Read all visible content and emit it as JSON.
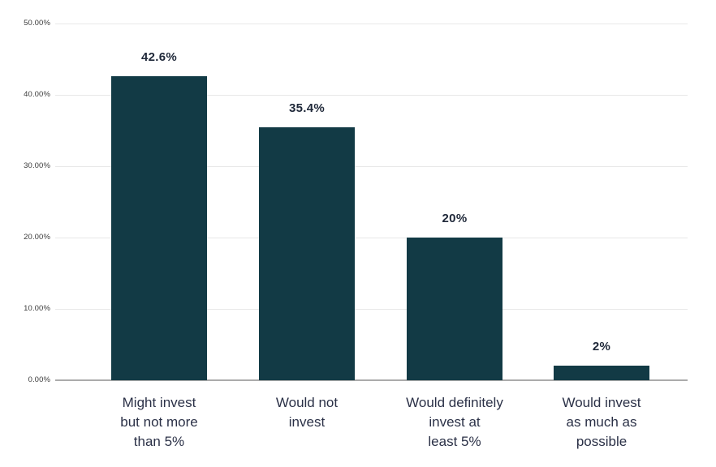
{
  "chart_data": {
    "type": "bar",
    "title": "",
    "xlabel": "",
    "ylabel": "",
    "categories": [
      "Might invest\nbut not more\nthan 5%",
      "Would not\ninvest",
      "Would definitely\ninvest at\nleast 5%",
      "Would invest\nas much as\npossible"
    ],
    "values": [
      42.6,
      35.4,
      20,
      2
    ],
    "value_labels": [
      "42.6%",
      "35.4%",
      "20%",
      "2%"
    ],
    "y_ticks": [
      "0.00%",
      "10.00%",
      "20.00%",
      "30.00%",
      "40.00%",
      "50.00%"
    ],
    "y_tick_values": [
      0,
      10,
      20,
      30,
      40,
      50
    ],
    "ylim": [
      0,
      50
    ],
    "grid": true,
    "legend": false,
    "colors": {
      "bar": "#123a45",
      "value_label": "#1f2839",
      "category_label": "#2b3147",
      "gridline": "#e8e8e8",
      "axis_line": "#ababab",
      "tick_label": "#3b3b3b"
    }
  }
}
